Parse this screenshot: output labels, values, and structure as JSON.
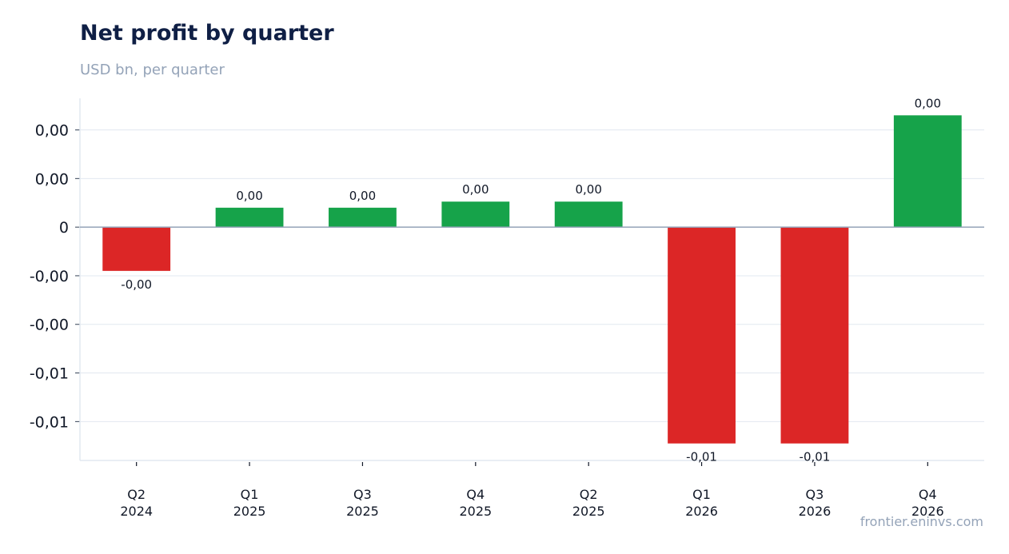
{
  "chart_data": {
    "type": "bar",
    "title": "Net profit by quarter",
    "subtitle": "USD bn, per quarter",
    "categories": [
      [
        "Q2",
        "2024"
      ],
      [
        "Q1",
        "2025"
      ],
      [
        "Q3",
        "2025"
      ],
      [
        "Q4",
        "2025"
      ],
      [
        "Q2",
        "2025"
      ],
      [
        "Q1",
        "2026"
      ],
      [
        "Q3",
        "2026"
      ],
      [
        "Q4",
        "2026"
      ]
    ],
    "values": [
      -0.0018,
      0.0008,
      0.0008,
      0.00105,
      0.00105,
      -0.0089,
      -0.0089,
      0.0046
    ],
    "data_labels": [
      "-0,00",
      "0,00",
      "0,00",
      "0,00",
      "0,00",
      "-0,01",
      "-0,01",
      "0,00"
    ],
    "ylim": [
      -0.0096,
      0.0053
    ],
    "yticks": [
      {
        "value": 0.004,
        "label": "0,00"
      },
      {
        "value": 0.002,
        "label": "0,00"
      },
      {
        "value": 0,
        "label": "0"
      },
      {
        "value": -0.002,
        "label": "-0,00"
      },
      {
        "value": -0.004,
        "label": "-0,00"
      },
      {
        "value": -0.006,
        "label": "-0,01"
      },
      {
        "value": -0.008,
        "label": "-0,01"
      }
    ],
    "grid": true,
    "colors": {
      "positive": "#16a34a",
      "negative": "#dc2626",
      "grid": "#e2e8f0",
      "zero_line": "#94a3b8"
    }
  },
  "source": "frontier.eninvs.com"
}
